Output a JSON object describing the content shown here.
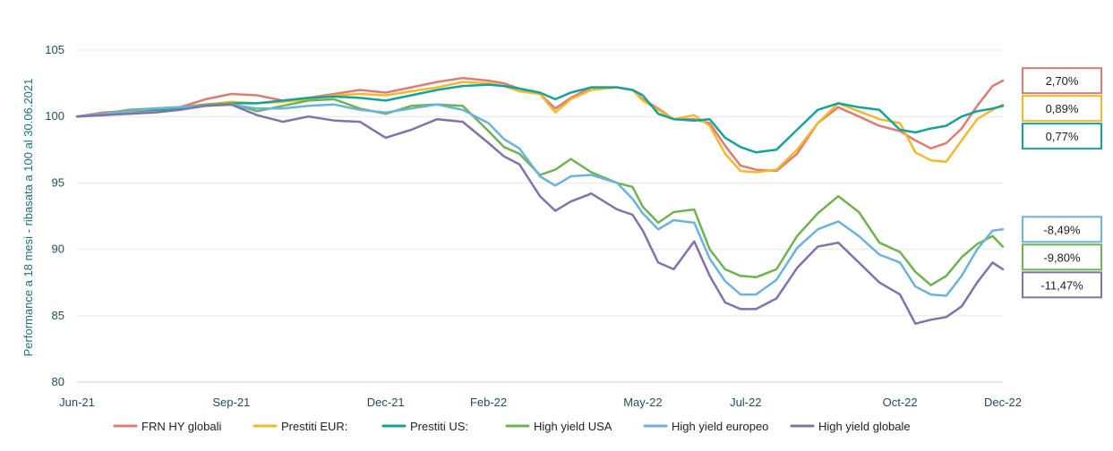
{
  "chart_data": {
    "type": "line",
    "title": "",
    "ylabel": "Performance a 18 mesi - ribasata a 100 al 30.06.2021",
    "xlabel": "",
    "ylim": [
      80,
      105
    ],
    "yticks": [
      "80",
      "85",
      "90",
      "95",
      "100",
      "105"
    ],
    "xlim": [
      0,
      18
    ],
    "xticks": [
      {
        "label": "Jun-21",
        "month": 0
      },
      {
        "label": "Sep-21",
        "month": 3
      },
      {
        "label": "Dec-21",
        "month": 6
      },
      {
        "label": "Feb-22",
        "month": 8
      },
      {
        "label": "May-22",
        "month": 11
      },
      {
        "label": "Jul-22",
        "month": 13
      },
      {
        "label": "Oct-22",
        "month": 16
      },
      {
        "label": "Dec-22",
        "month": 18
      }
    ],
    "grid": true,
    "legend": "bottom",
    "series": [
      {
        "name": "FRN HY globali",
        "color": "#E07B74",
        "final_label": "2,70%",
        "final_value": 102.7,
        "points": [
          [
            0,
            100
          ],
          [
            0.5,
            100.3
          ],
          [
            1,
            100.4
          ],
          [
            1.5,
            100.6
          ],
          [
            2,
            100.7
          ],
          [
            2.5,
            101.3
          ],
          [
            3,
            101.7
          ],
          [
            3.5,
            101.6
          ],
          [
            4,
            101.2
          ],
          [
            4.5,
            101.4
          ],
          [
            5,
            101.7
          ],
          [
            5.5,
            102.0
          ],
          [
            6,
            101.8
          ],
          [
            6.5,
            102.2
          ],
          [
            7,
            102.6
          ],
          [
            7.5,
            102.9
          ],
          [
            8,
            102.7
          ],
          [
            8.3,
            102.5
          ],
          [
            8.6,
            102.1
          ],
          [
            9,
            101.7
          ],
          [
            9.3,
            100.6
          ],
          [
            9.6,
            101.4
          ],
          [
            10,
            102.2
          ],
          [
            10.5,
            102.2
          ],
          [
            10.8,
            102.0
          ],
          [
            11,
            101.3
          ],
          [
            11.3,
            100.6
          ],
          [
            11.6,
            99.8
          ],
          [
            12,
            99.8
          ],
          [
            12.3,
            99.5
          ],
          [
            12.6,
            97.8
          ],
          [
            12.9,
            96.3
          ],
          [
            13.2,
            96.0
          ],
          [
            13.6,
            95.9
          ],
          [
            14,
            97.2
          ],
          [
            14.4,
            99.5
          ],
          [
            14.8,
            100.7
          ],
          [
            15.2,
            100.0
          ],
          [
            15.6,
            99.3
          ],
          [
            16,
            98.9
          ],
          [
            16.3,
            98.2
          ],
          [
            16.6,
            97.6
          ],
          [
            16.9,
            98.0
          ],
          [
            17.2,
            99.1
          ],
          [
            17.5,
            100.8
          ],
          [
            17.8,
            102.3
          ],
          [
            18,
            102.7
          ]
        ]
      },
      {
        "name": "Prestiti EUR:",
        "color": "#F2B92C",
        "final_label": "0,89%",
        "final_value": 100.9,
        "points": [
          [
            0,
            100
          ],
          [
            0.5,
            100.1
          ],
          [
            1,
            100.3
          ],
          [
            1.5,
            100.4
          ],
          [
            2,
            100.6
          ],
          [
            2.5,
            100.9
          ],
          [
            3,
            101.1
          ],
          [
            3.5,
            101.0
          ],
          [
            4,
            101.1
          ],
          [
            4.5,
            101.3
          ],
          [
            5,
            101.6
          ],
          [
            5.5,
            101.7
          ],
          [
            6,
            101.6
          ],
          [
            6.5,
            101.9
          ],
          [
            7,
            102.2
          ],
          [
            7.5,
            102.6
          ],
          [
            8,
            102.5
          ],
          [
            8.3,
            102.3
          ],
          [
            8.6,
            101.9
          ],
          [
            9,
            101.7
          ],
          [
            9.3,
            100.3
          ],
          [
            9.6,
            101.3
          ],
          [
            10,
            102.0
          ],
          [
            10.5,
            102.2
          ],
          [
            10.8,
            102.0
          ],
          [
            11,
            101.2
          ],
          [
            11.3,
            100.5
          ],
          [
            11.6,
            99.8
          ],
          [
            12,
            100.1
          ],
          [
            12.3,
            99.3
          ],
          [
            12.6,
            97.2
          ],
          [
            12.9,
            95.9
          ],
          [
            13.2,
            95.8
          ],
          [
            13.6,
            96.0
          ],
          [
            14,
            97.5
          ],
          [
            14.4,
            99.5
          ],
          [
            14.8,
            101.0
          ],
          [
            15.2,
            100.4
          ],
          [
            15.6,
            99.8
          ],
          [
            16,
            99.5
          ],
          [
            16.3,
            97.3
          ],
          [
            16.6,
            96.7
          ],
          [
            16.9,
            96.6
          ],
          [
            17.2,
            98.2
          ],
          [
            17.5,
            99.8
          ],
          [
            17.8,
            100.5
          ],
          [
            18,
            100.9
          ]
        ]
      },
      {
        "name": "Prestiti US:",
        "color": "#14A39A",
        "final_label": "0,77%",
        "final_value": 100.8,
        "points": [
          [
            0,
            100
          ],
          [
            0.5,
            100.2
          ],
          [
            1,
            100.4
          ],
          [
            1.5,
            100.5
          ],
          [
            2,
            100.6
          ],
          [
            2.5,
            100.8
          ],
          [
            3,
            101.0
          ],
          [
            3.5,
            101.0
          ],
          [
            4,
            101.2
          ],
          [
            4.5,
            101.4
          ],
          [
            5,
            101.5
          ],
          [
            5.5,
            101.4
          ],
          [
            6,
            101.2
          ],
          [
            6.5,
            101.6
          ],
          [
            7,
            102.0
          ],
          [
            7.5,
            102.3
          ],
          [
            8,
            102.4
          ],
          [
            8.3,
            102.3
          ],
          [
            8.6,
            102.1
          ],
          [
            9,
            101.8
          ],
          [
            9.3,
            101.3
          ],
          [
            9.6,
            101.8
          ],
          [
            10,
            102.2
          ],
          [
            10.5,
            102.2
          ],
          [
            10.8,
            102.0
          ],
          [
            11,
            101.6
          ],
          [
            11.3,
            100.2
          ],
          [
            11.6,
            99.8
          ],
          [
            12,
            99.7
          ],
          [
            12.3,
            99.8
          ],
          [
            12.6,
            98.4
          ],
          [
            12.9,
            97.7
          ],
          [
            13.2,
            97.3
          ],
          [
            13.6,
            97.5
          ],
          [
            14,
            99.0
          ],
          [
            14.4,
            100.5
          ],
          [
            14.8,
            101.0
          ],
          [
            15.2,
            100.7
          ],
          [
            15.6,
            100.5
          ],
          [
            16,
            99.0
          ],
          [
            16.3,
            98.8
          ],
          [
            16.6,
            99.1
          ],
          [
            16.9,
            99.3
          ],
          [
            17.2,
            100.0
          ],
          [
            17.5,
            100.4
          ],
          [
            17.8,
            100.6
          ],
          [
            18,
            100.8
          ]
        ]
      },
      {
        "name": "High yield USA",
        "color": "#6FB350",
        "final_label": "-9,80%",
        "final_value": 90.2,
        "points": [
          [
            0,
            100
          ],
          [
            0.5,
            100.2
          ],
          [
            1,
            100.5
          ],
          [
            1.5,
            100.6
          ],
          [
            2,
            100.7
          ],
          [
            2.5,
            100.9
          ],
          [
            3,
            101.0
          ],
          [
            3.5,
            100.4
          ],
          [
            4,
            100.8
          ],
          [
            4.5,
            101.2
          ],
          [
            5,
            101.3
          ],
          [
            5.5,
            100.6
          ],
          [
            6,
            100.2
          ],
          [
            6.5,
            100.8
          ],
          [
            7,
            100.9
          ],
          [
            7.5,
            100.8
          ],
          [
            8,
            98.9
          ],
          [
            8.3,
            97.7
          ],
          [
            8.6,
            97.2
          ],
          [
            9,
            95.6
          ],
          [
            9.3,
            96.0
          ],
          [
            9.6,
            96.8
          ],
          [
            10,
            95.8
          ],
          [
            10.5,
            95.0
          ],
          [
            10.8,
            94.7
          ],
          [
            11,
            93.2
          ],
          [
            11.3,
            92.0
          ],
          [
            11.6,
            92.8
          ],
          [
            12,
            93.0
          ],
          [
            12.3,
            90.0
          ],
          [
            12.6,
            88.5
          ],
          [
            12.9,
            88.0
          ],
          [
            13.2,
            87.9
          ],
          [
            13.6,
            88.5
          ],
          [
            14,
            91.0
          ],
          [
            14.4,
            92.7
          ],
          [
            14.8,
            94.0
          ],
          [
            15.2,
            92.8
          ],
          [
            15.6,
            90.5
          ],
          [
            16,
            89.8
          ],
          [
            16.3,
            88.3
          ],
          [
            16.6,
            87.3
          ],
          [
            16.9,
            88.0
          ],
          [
            17.2,
            89.4
          ],
          [
            17.5,
            90.4
          ],
          [
            17.8,
            91.0
          ],
          [
            18,
            90.2
          ]
        ]
      },
      {
        "name": "High yield europeo",
        "color": "#6BB3DC",
        "final_label": "-8,49%",
        "final_value": 91.5,
        "points": [
          [
            0,
            100
          ],
          [
            0.5,
            100.2
          ],
          [
            1,
            100.4
          ],
          [
            1.5,
            100.6
          ],
          [
            2,
            100.7
          ],
          [
            2.5,
            100.8
          ],
          [
            3,
            100.9
          ],
          [
            3.5,
            100.6
          ],
          [
            4,
            100.6
          ],
          [
            4.5,
            100.8
          ],
          [
            5,
            100.9
          ],
          [
            5.5,
            100.5
          ],
          [
            6,
            100.3
          ],
          [
            6.5,
            100.6
          ],
          [
            7,
            100.9
          ],
          [
            7.5,
            100.5
          ],
          [
            8,
            99.5
          ],
          [
            8.3,
            98.3
          ],
          [
            8.6,
            97.6
          ],
          [
            9,
            95.5
          ],
          [
            9.3,
            94.8
          ],
          [
            9.6,
            95.5
          ],
          [
            10,
            95.6
          ],
          [
            10.5,
            95.0
          ],
          [
            10.8,
            93.8
          ],
          [
            11,
            92.7
          ],
          [
            11.3,
            91.5
          ],
          [
            11.6,
            92.2
          ],
          [
            12,
            92.0
          ],
          [
            12.3,
            89.3
          ],
          [
            12.6,
            87.6
          ],
          [
            12.9,
            86.6
          ],
          [
            13.2,
            86.6
          ],
          [
            13.6,
            87.7
          ],
          [
            14,
            90.1
          ],
          [
            14.4,
            91.5
          ],
          [
            14.8,
            92.1
          ],
          [
            15.2,
            91.0
          ],
          [
            15.6,
            89.6
          ],
          [
            16,
            89.0
          ],
          [
            16.3,
            87.2
          ],
          [
            16.6,
            86.6
          ],
          [
            16.9,
            86.5
          ],
          [
            17.2,
            88.0
          ],
          [
            17.5,
            90.0
          ],
          [
            17.8,
            91.4
          ],
          [
            18,
            91.5
          ]
        ]
      },
      {
        "name": "High yield globale",
        "color": "#8073AC",
        "final_label": "-11,47%",
        "final_value": 88.5,
        "points": [
          [
            0,
            100
          ],
          [
            0.5,
            100.1
          ],
          [
            1,
            100.2
          ],
          [
            1.5,
            100.3
          ],
          [
            2,
            100.5
          ],
          [
            2.5,
            100.8
          ],
          [
            3,
            100.9
          ],
          [
            3.5,
            100.1
          ],
          [
            4,
            99.6
          ],
          [
            4.5,
            100.0
          ],
          [
            5,
            99.7
          ],
          [
            5.5,
            99.6
          ],
          [
            6,
            98.4
          ],
          [
            6.5,
            99.0
          ],
          [
            7,
            99.8
          ],
          [
            7.5,
            99.6
          ],
          [
            8,
            98.0
          ],
          [
            8.3,
            97.0
          ],
          [
            8.6,
            96.4
          ],
          [
            9,
            94.0
          ],
          [
            9.3,
            92.9
          ],
          [
            9.6,
            93.6
          ],
          [
            10,
            94.2
          ],
          [
            10.5,
            93.0
          ],
          [
            10.8,
            92.6
          ],
          [
            11,
            91.4
          ],
          [
            11.3,
            89.0
          ],
          [
            11.6,
            88.5
          ],
          [
            12,
            90.6
          ],
          [
            12.3,
            88.0
          ],
          [
            12.6,
            86.0
          ],
          [
            12.9,
            85.5
          ],
          [
            13.2,
            85.5
          ],
          [
            13.6,
            86.3
          ],
          [
            14,
            88.6
          ],
          [
            14.4,
            90.2
          ],
          [
            14.8,
            90.5
          ],
          [
            15.2,
            89.0
          ],
          [
            15.6,
            87.5
          ],
          [
            16,
            86.6
          ],
          [
            16.3,
            84.4
          ],
          [
            16.6,
            84.7
          ],
          [
            16.9,
            84.9
          ],
          [
            17.2,
            85.7
          ],
          [
            17.5,
            87.5
          ],
          [
            17.8,
            89.0
          ],
          [
            18,
            88.5
          ]
        ]
      }
    ]
  }
}
